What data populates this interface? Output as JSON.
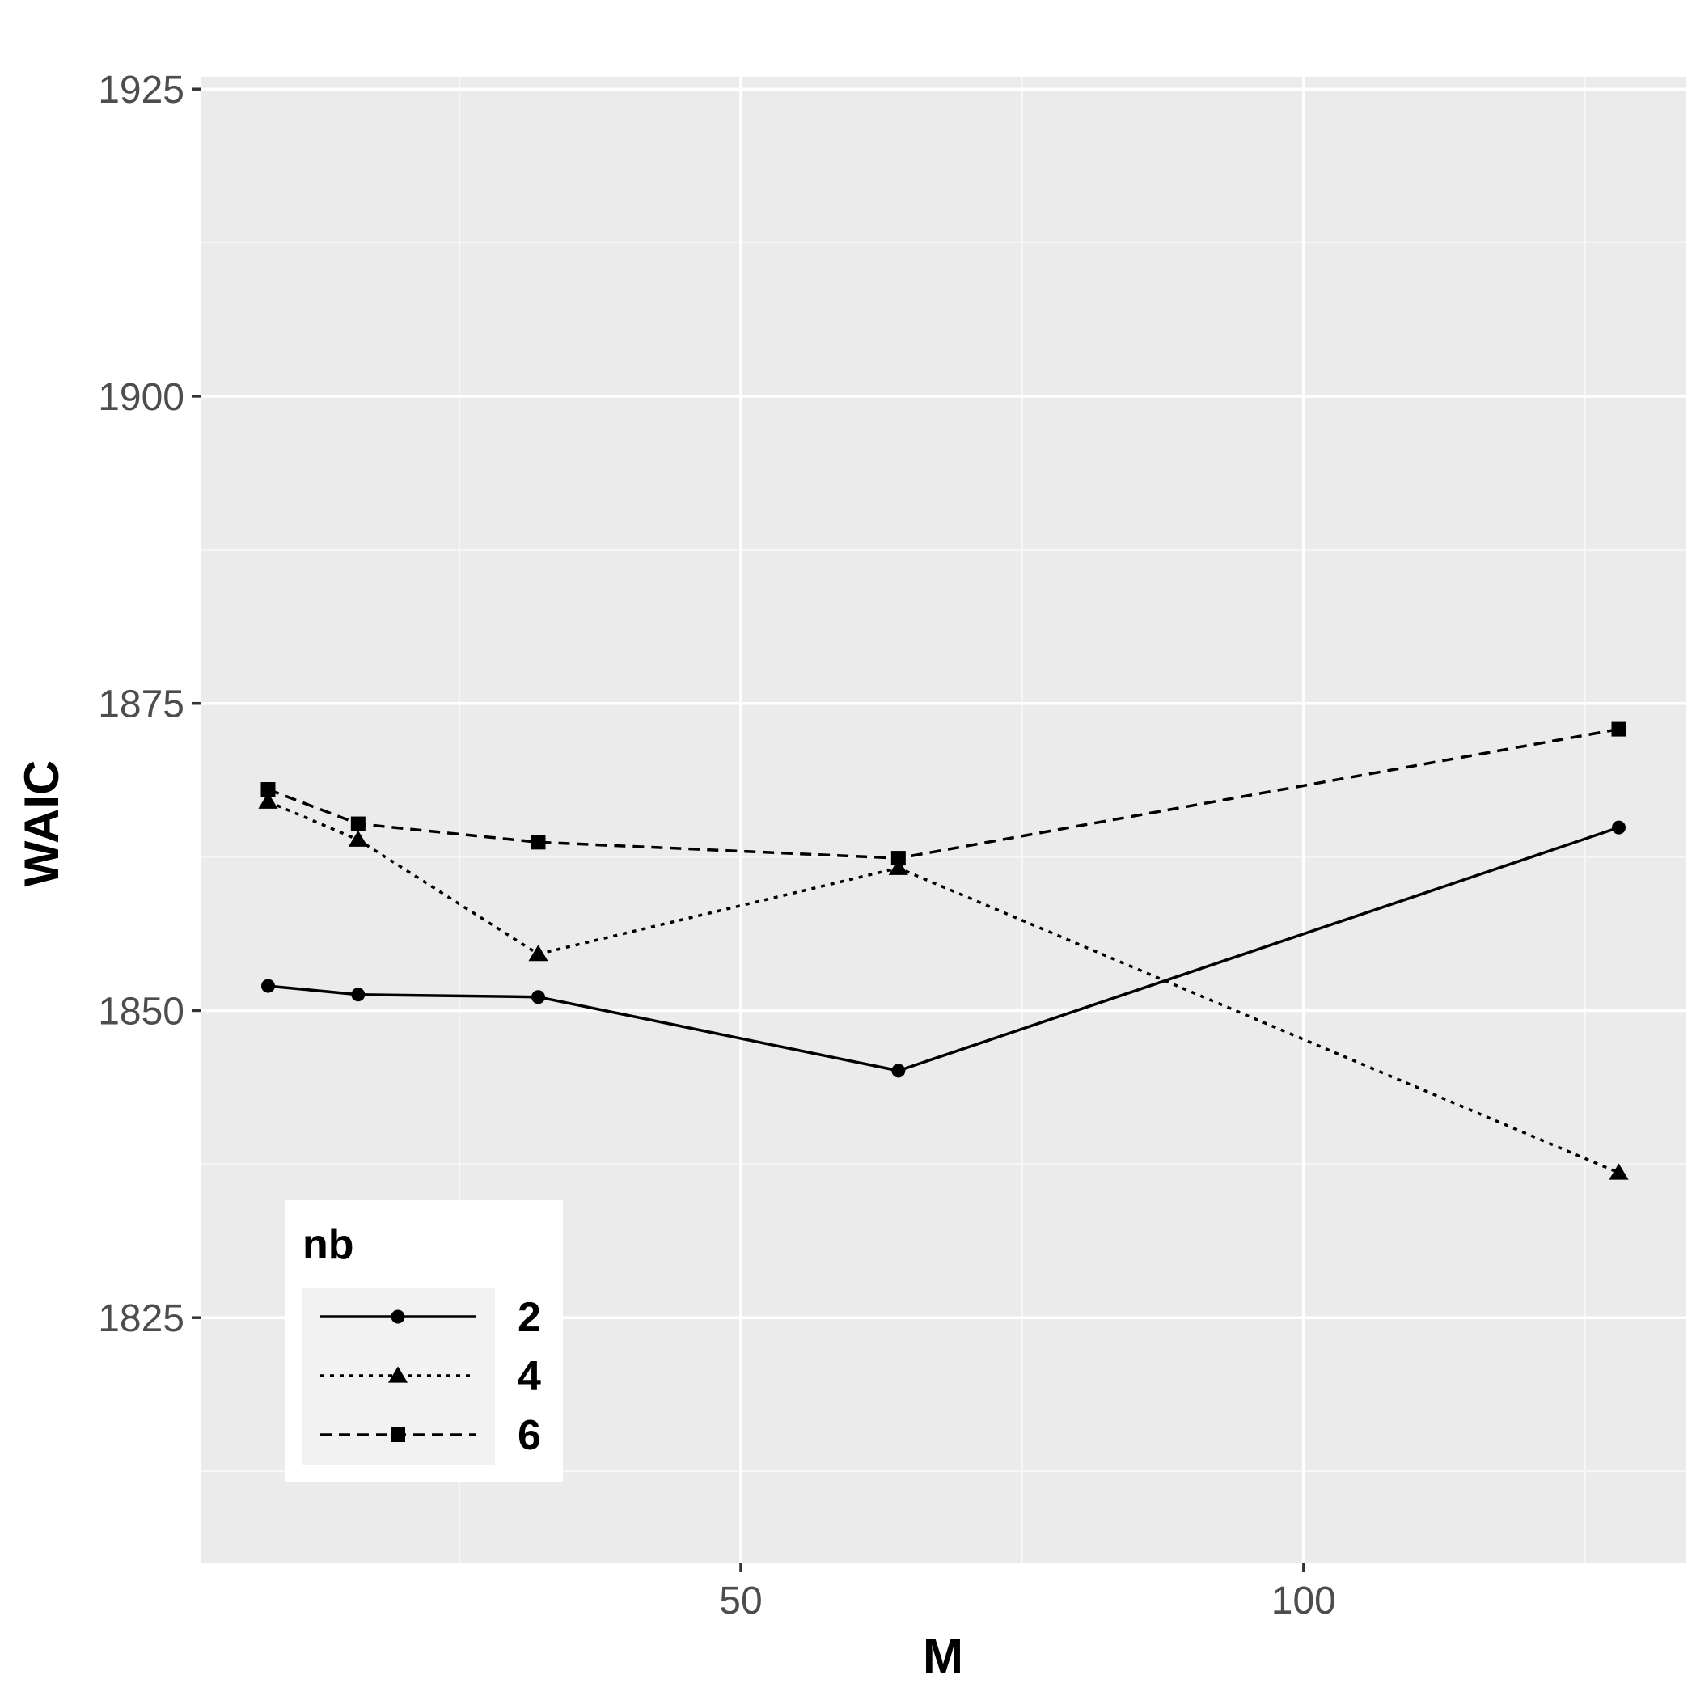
{
  "chart_data": {
    "type": "line",
    "title": "",
    "xlabel": "M",
    "ylabel": "WAIC",
    "xlim": [
      2,
      134
    ],
    "ylim": [
      1805,
      1926
    ],
    "x_ticks": [
      50,
      100
    ],
    "x_tick_labels": [
      "50",
      "100"
    ],
    "y_ticks": [
      1825,
      1850,
      1875,
      1900,
      1925
    ],
    "y_tick_labels": [
      "1825",
      "1850",
      "1875",
      "1900",
      "1925"
    ],
    "grid": true,
    "legend": {
      "title": "nb",
      "placement": "bottom-left"
    },
    "series": [
      {
        "name": "2",
        "linestyle": "solid",
        "marker": "circle",
        "color": "#000000",
        "points": [
          [
            8,
            1852.0
          ],
          [
            16,
            1851.3
          ],
          [
            32,
            1851.1
          ],
          [
            64,
            1845.1
          ],
          [
            128,
            1864.9
          ]
        ]
      },
      {
        "name": "4",
        "linestyle": "dotted",
        "marker": "triangle",
        "color": "#000000",
        "points": [
          [
            8,
            1867.0
          ],
          [
            16,
            1863.9
          ],
          [
            32,
            1854.6
          ],
          [
            64,
            1861.6
          ],
          [
            128,
            1836.8
          ]
        ]
      },
      {
        "name": "6",
        "linestyle": "dashed",
        "marker": "square",
        "color": "#000000",
        "points": [
          [
            8,
            1868.0
          ],
          [
            16,
            1865.2
          ],
          [
            32,
            1863.7
          ],
          [
            64,
            1862.4
          ],
          [
            128,
            1872.9
          ]
        ]
      }
    ]
  },
  "colors": {
    "panel_background": "#ebebeb",
    "grid_major": "#ffffff",
    "grid_minor": "#f7f7f7",
    "tick_text": "#4d4d4d",
    "title_text": "#000000",
    "legend_key_background": "#f2f2f2"
  }
}
